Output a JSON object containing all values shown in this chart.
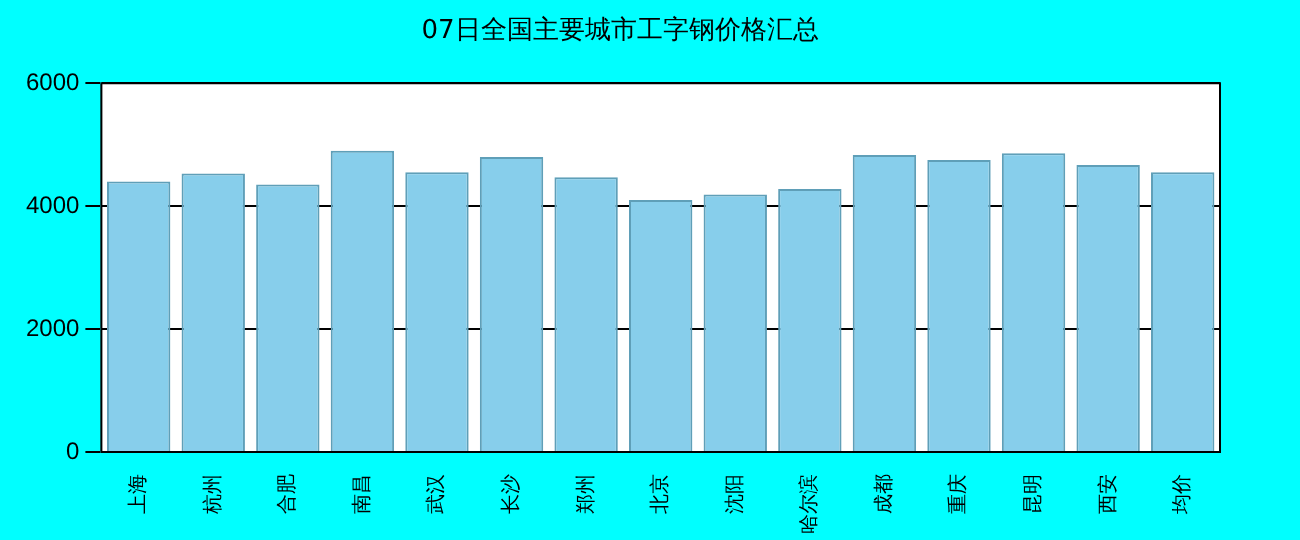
{
  "chart_data": {
    "type": "bar",
    "title": "07日全国主要城市工字钢价格汇总",
    "categories": [
      "上海",
      "杭州",
      "合肥",
      "南昌",
      "武汉",
      "长沙",
      "郑州",
      "北京",
      "沈阳",
      "哈尔滨",
      "成都",
      "重庆",
      "昆明",
      "西安",
      "均价"
    ],
    "values": [
      4400,
      4530,
      4350,
      4900,
      4550,
      4800,
      4470,
      4100,
      4190,
      4280,
      4830,
      4750,
      4860,
      4670,
      4550
    ],
    "color": "#87ceeb",
    "ylim": [
      0,
      6000
    ],
    "yticks": [
      0,
      2000,
      4000,
      6000
    ],
    "grid": "y"
  }
}
